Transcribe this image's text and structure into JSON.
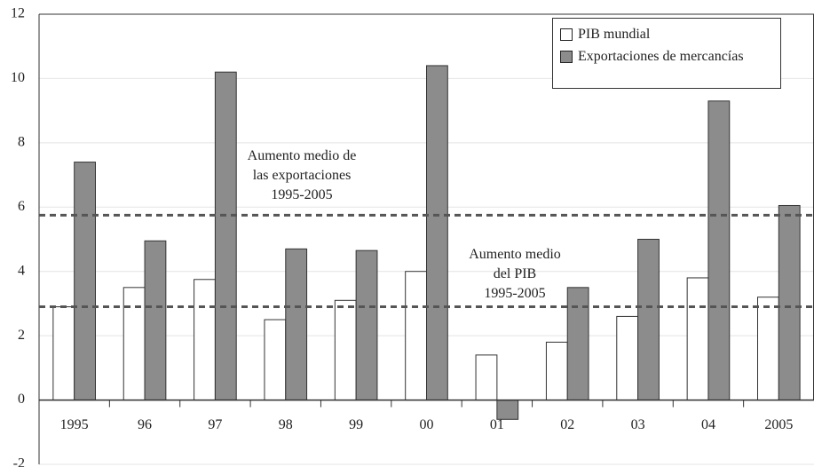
{
  "chart_data": {
    "type": "bar",
    "categories": [
      "1995",
      "96",
      "97",
      "98",
      "99",
      "00",
      "01",
      "02",
      "03",
      "04",
      "2005"
    ],
    "series": [
      {
        "name": "PIB mundial",
        "color": "#ffffff",
        "values": [
          2.9,
          3.5,
          3.75,
          2.5,
          3.1,
          4.0,
          1.4,
          1.8,
          2.6,
          3.8,
          3.2
        ]
      },
      {
        "name": "Exportaciones de mercancías",
        "color": "#8c8c8c",
        "values": [
          7.4,
          4.95,
          10.2,
          4.7,
          4.65,
          10.4,
          -0.6,
          3.5,
          5.0,
          9.3,
          6.05
        ]
      }
    ],
    "ylim": [
      -2,
      12
    ],
    "yticks": [
      -2,
      0,
      2,
      4,
      6,
      8,
      10,
      12
    ],
    "grid": true,
    "legend": "upper right",
    "reference_lines": [
      {
        "value": 5.75,
        "label_lines": [
          "Aumento medio de",
          "las exportaciones",
          "1995-2005"
        ]
      },
      {
        "value": 2.9,
        "label_lines": [
          "Aumento medio",
          "del PIB",
          "1995-2005"
        ]
      }
    ]
  }
}
